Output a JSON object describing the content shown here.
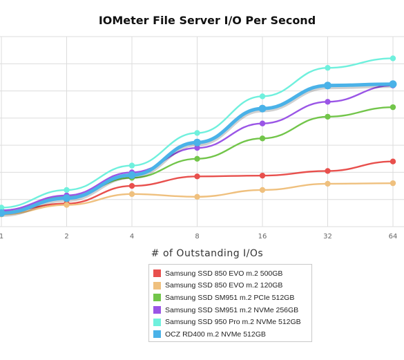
{
  "chart_data": {
    "type": "line",
    "title": "IOMeter File Server I/O Per Second",
    "xlabel": "# of Outstanding I/Os",
    "ylabel": "",
    "x": [
      "1",
      "2",
      "4",
      "8",
      "16",
      "32",
      "64"
    ],
    "ylim": [
      0,
      7
    ],
    "grid": true,
    "legend_position": "bottom",
    "series": [
      {
        "name": "Samsung SSD 850 EVO m.2 500GB",
        "color": "#e8504d",
        "values": [
          0.55,
          0.85,
          1.5,
          1.85,
          1.88,
          2.05,
          2.4
        ]
      },
      {
        "name": "Samsung SSD 850 EVO m.2 120GB",
        "color": "#efc07e",
        "values": [
          0.45,
          0.8,
          1.2,
          1.1,
          1.35,
          1.58,
          1.6
        ]
      },
      {
        "name": "Samsung SSD SM951 m.2 PCIe 512GB",
        "color": "#72c54a",
        "values": [
          0.6,
          1.1,
          1.8,
          2.5,
          3.25,
          4.05,
          4.4
        ]
      },
      {
        "name": "Samsung SSD SM951 m.2 NVMe 256GB",
        "color": "#9a55e6",
        "values": [
          0.6,
          1.15,
          2.0,
          2.9,
          3.8,
          4.6,
          5.2
        ]
      },
      {
        "name": "Samsung SSD 950 Pro m.2 NVMe 512GB",
        "color": "#6ff0dd",
        "values": [
          0.7,
          1.35,
          2.25,
          3.45,
          4.8,
          5.85,
          6.2
        ]
      },
      {
        "name": "OCZ RD400 m.2 NVMe 512GB",
        "color": "#4ab2e8",
        "values": [
          0.5,
          1.05,
          1.9,
          3.1,
          4.35,
          5.2,
          5.25
        ],
        "highlight": true
      }
    ]
  }
}
